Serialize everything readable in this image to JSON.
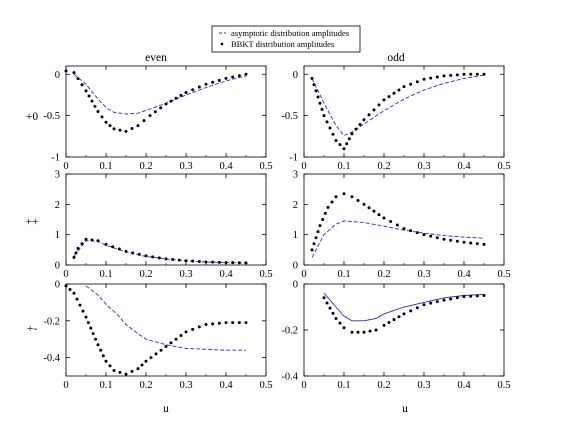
{
  "legend": {
    "asymptotic_label": "asymptotic distribution amplitudes",
    "bbkt_label": "BBKT distribution amplitudes",
    "asymptotic_color": "#2a2ad6",
    "bbkt_color": "#000000"
  },
  "column_titles": [
    "even",
    "odd"
  ],
  "row_labels": [
    "+0",
    "++",
    "+-"
  ],
  "x_axis_label": "u",
  "chart_data": [
    {
      "type": "line",
      "column": "even",
      "row": "+0",
      "xlim": [
        0,
        0.5
      ],
      "ylim": [
        -1,
        0.1
      ],
      "xticks": [
        0,
        0.1,
        0.2,
        0.3,
        0.4,
        0.5
      ],
      "xtick_labels": [
        "0",
        "0.1",
        "0.2",
        "0.3",
        "0.4",
        "0.5"
      ],
      "yticks": [
        0,
        -0.5,
        -1
      ],
      "ytick_labels": [
        "0",
        "-0.5",
        "-1"
      ],
      "series": [
        {
          "style": "dashed",
          "x": [
            0.02,
            0.05,
            0.08,
            0.1,
            0.12,
            0.15,
            0.18,
            0.21,
            0.25,
            0.3,
            0.35,
            0.4,
            0.45
          ],
          "y": [
            0.0,
            -0.12,
            -0.3,
            -0.4,
            -0.46,
            -0.48,
            -0.47,
            -0.42,
            -0.35,
            -0.25,
            -0.16,
            -0.08,
            -0.02
          ]
        },
        {
          "style": "dotted",
          "x": [
            0.0,
            0.02,
            0.05,
            0.08,
            0.1,
            0.12,
            0.15,
            0.18,
            0.21,
            0.25,
            0.3,
            0.35,
            0.4,
            0.45
          ],
          "y": [
            0.04,
            0.02,
            -0.2,
            -0.45,
            -0.58,
            -0.66,
            -0.69,
            -0.62,
            -0.5,
            -0.36,
            -0.22,
            -0.12,
            -0.05,
            0.0
          ]
        }
      ]
    },
    {
      "type": "line",
      "column": "odd",
      "row": "+0",
      "xlim": [
        0,
        0.5
      ],
      "ylim": [
        -1,
        0.1
      ],
      "xticks": [
        0,
        0.1,
        0.2,
        0.3,
        0.4,
        0.5
      ],
      "xtick_labels": [
        "0",
        "0.1",
        "0.2",
        "0.3",
        "0.4",
        "0.5"
      ],
      "yticks": [
        0,
        -0.5,
        -1
      ],
      "ytick_labels": [
        "0",
        "-0.5",
        "-1"
      ],
      "series": [
        {
          "style": "dashed",
          "x": [
            0.02,
            0.05,
            0.08,
            0.1,
            0.12,
            0.15,
            0.2,
            0.25,
            0.3,
            0.35,
            0.4,
            0.45
          ],
          "y": [
            -0.05,
            -0.35,
            -0.62,
            -0.74,
            -0.7,
            -0.6,
            -0.44,
            -0.3,
            -0.19,
            -0.11,
            -0.05,
            -0.01
          ]
        },
        {
          "style": "dotted",
          "x": [
            0.02,
            0.05,
            0.08,
            0.1,
            0.12,
            0.15,
            0.2,
            0.25,
            0.3,
            0.35,
            0.4,
            0.45
          ],
          "y": [
            -0.05,
            -0.5,
            -0.8,
            -0.9,
            -0.72,
            -0.55,
            -0.31,
            -0.15,
            -0.06,
            -0.02,
            0.0,
            0.0
          ]
        }
      ]
    },
    {
      "type": "line",
      "column": "even",
      "row": "++",
      "xlim": [
        0,
        0.5
      ],
      "ylim": [
        0,
        3
      ],
      "xticks": [
        0,
        0.1,
        0.2,
        0.3,
        0.4,
        0.5
      ],
      "xtick_labels": [
        "0",
        "0.1",
        "0.2",
        "0.3",
        "0.4",
        "0.5"
      ],
      "yticks": [
        0,
        1,
        2,
        3
      ],
      "ytick_labels": [
        "0",
        "1",
        "2",
        "3"
      ],
      "series": [
        {
          "style": "dashed",
          "x": [
            0.02,
            0.05,
            0.08,
            0.1,
            0.15,
            0.2,
            0.25,
            0.3,
            0.35,
            0.4,
            0.45
          ],
          "y": [
            0.3,
            0.8,
            0.78,
            0.65,
            0.43,
            0.28,
            0.2,
            0.14,
            0.1,
            0.08,
            0.07
          ]
        },
        {
          "style": "dotted",
          "x": [
            0.02,
            0.03,
            0.05,
            0.08,
            0.1,
            0.15,
            0.2,
            0.25,
            0.3,
            0.35,
            0.4,
            0.45
          ],
          "y": [
            0.25,
            0.55,
            0.85,
            0.8,
            0.68,
            0.45,
            0.3,
            0.2,
            0.14,
            0.1,
            0.08,
            0.07
          ]
        }
      ]
    },
    {
      "type": "line",
      "column": "odd",
      "row": "++",
      "xlim": [
        0,
        0.5
      ],
      "ylim": [
        0,
        3
      ],
      "xticks": [
        0,
        0.1,
        0.2,
        0.3,
        0.4,
        0.5
      ],
      "xtick_labels": [
        "0",
        "0.1",
        "0.2",
        "0.3",
        "0.4",
        "0.5"
      ],
      "yticks": [
        0,
        1,
        2,
        3
      ],
      "ytick_labels": [
        "0",
        "1",
        "2",
        "3"
      ],
      "series": [
        {
          "style": "dashed",
          "x": [
            0.02,
            0.05,
            0.08,
            0.1,
            0.15,
            0.2,
            0.25,
            0.3,
            0.35,
            0.4,
            0.45
          ],
          "y": [
            0.25,
            1.0,
            1.35,
            1.45,
            1.4,
            1.28,
            1.15,
            1.05,
            0.97,
            0.92,
            0.88
          ]
        },
        {
          "style": "dotted",
          "x": [
            0.02,
            0.04,
            0.06,
            0.08,
            0.1,
            0.12,
            0.15,
            0.2,
            0.25,
            0.3,
            0.35,
            0.4,
            0.45
          ],
          "y": [
            0.5,
            1.3,
            1.9,
            2.25,
            2.35,
            2.25,
            2.0,
            1.55,
            1.2,
            1.0,
            0.85,
            0.75,
            0.68
          ]
        }
      ]
    },
    {
      "type": "line",
      "column": "even",
      "row": "+-",
      "xlim": [
        0,
        0.5
      ],
      "ylim": [
        -0.5,
        0
      ],
      "xticks": [
        0,
        0.1,
        0.2,
        0.3,
        0.4,
        0.5
      ],
      "xtick_labels": [
        "0",
        "0.1",
        "0.2",
        "0.3",
        "0.4",
        "0.5"
      ],
      "yticks": [
        0,
        -0.2,
        -0.4
      ],
      "ytick_labels": [
        "0",
        "-0.2",
        "-0.4"
      ],
      "series": [
        {
          "style": "dashed",
          "x": [
            0.05,
            0.08,
            0.1,
            0.13,
            0.15,
            0.18,
            0.2,
            0.25,
            0.3,
            0.35,
            0.4,
            0.45
          ],
          "y": [
            -0.01,
            -0.06,
            -0.11,
            -0.17,
            -0.22,
            -0.27,
            -0.3,
            -0.33,
            -0.35,
            -0.355,
            -0.36,
            -0.36
          ]
        },
        {
          "style": "dotted",
          "x": [
            0.0,
            0.02,
            0.05,
            0.08,
            0.1,
            0.12,
            0.15,
            0.18,
            0.2,
            0.25,
            0.3,
            0.35,
            0.4,
            0.45
          ],
          "y": [
            -0.01,
            -0.05,
            -0.18,
            -0.33,
            -0.42,
            -0.47,
            -0.49,
            -0.46,
            -0.42,
            -0.34,
            -0.26,
            -0.22,
            -0.21,
            -0.21
          ]
        }
      ]
    },
    {
      "type": "line",
      "column": "odd",
      "row": "+-",
      "xlim": [
        0,
        0.5
      ],
      "ylim": [
        -0.4,
        0
      ],
      "xticks": [
        0,
        0.1,
        0.2,
        0.3,
        0.4,
        0.5
      ],
      "xtick_labels": [
        "0",
        "0.1",
        "0.2",
        "0.3",
        "0.4",
        "0.5"
      ],
      "yticks": [
        0,
        -0.2,
        -0.4
      ],
      "ytick_labels": [
        "0",
        "-0.2",
        "-0.4"
      ],
      "series": [
        {
          "style": "solid",
          "x": [
            0.05,
            0.08,
            0.1,
            0.12,
            0.15,
            0.18,
            0.2,
            0.25,
            0.3,
            0.35,
            0.4,
            0.45
          ],
          "y": [
            -0.04,
            -0.1,
            -0.14,
            -0.16,
            -0.16,
            -0.15,
            -0.13,
            -0.1,
            -0.08,
            -0.06,
            -0.05,
            -0.045
          ]
        },
        {
          "style": "dotted",
          "x": [
            0.05,
            0.08,
            0.1,
            0.12,
            0.15,
            0.18,
            0.2,
            0.25,
            0.3,
            0.35,
            0.4,
            0.45
          ],
          "y": [
            -0.06,
            -0.15,
            -0.19,
            -0.21,
            -0.21,
            -0.2,
            -0.18,
            -0.13,
            -0.09,
            -0.07,
            -0.055,
            -0.05
          ]
        }
      ]
    }
  ]
}
